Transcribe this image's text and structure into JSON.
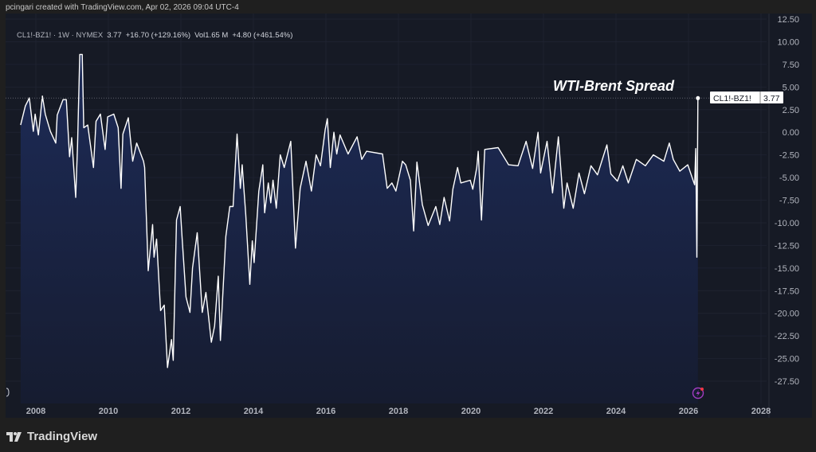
{
  "credit": "pcingari created with TradingView.com, Apr 02, 2026 09:04 UTC-4",
  "legend": {
    "symbol": "CL1!-BZ1! · 1W · NYMEX",
    "last": "3.77",
    "change": "+16.70 (+129.16%)",
    "volume": "Vol1.65 M",
    "vol_change": "+4.80 (+461.54%)"
  },
  "price_label": {
    "symbol": "CL1!-BZ1!",
    "value": "3.77"
  },
  "brand": "TradingView",
  "colors": {
    "line": "#ffffff",
    "fill_top": "#1d2b58",
    "fill_bottom": "#161c30",
    "background": "#161a25",
    "alert": "#b040c0"
  },
  "icons": [
    "tradingview-logo-icon",
    "lightning-alert-icon"
  ],
  "chart_data": {
    "type": "area",
    "title": "WTI-Brent Spread",
    "xlabel": "",
    "ylabel": "",
    "xlim": [
      2007.2,
      2028.5
    ],
    "ylim": [
      -29,
      13.5
    ],
    "grid": true,
    "x_ticks": [
      "2008",
      "2010",
      "2012",
      "2014",
      "2016",
      "2018",
      "2020",
      "2022",
      "2024",
      "2026",
      "2028"
    ],
    "y_ticks": [
      "12.50",
      "10.00",
      "7.50",
      "5.00",
      "2.50",
      "0.00",
      "-2.50",
      "-5.00",
      "-7.50",
      "-10.00",
      "-12.50",
      "-15.00",
      "-17.50",
      "-20.00",
      "-22.50",
      "-25.00",
      "-27.50"
    ],
    "last_value": 3.77,
    "series": [
      {
        "x": [
          2007.58,
          2007.71,
          2007.82,
          2007.93,
          2007.98,
          2008.07,
          2008.18,
          2008.26,
          2008.4,
          2008.55,
          2008.59,
          2008.75,
          2008.84,
          2008.93,
          2008.99,
          2009.1,
          2009.15,
          2009.21,
          2009.28,
          2009.32,
          2009.43,
          2009.59,
          2009.66,
          2009.78,
          2009.91,
          2009.98,
          2010.15,
          2010.27,
          2010.35,
          2010.4,
          2010.55,
          2010.67,
          2010.78,
          2010.97,
          2011.0,
          2011.1,
          2011.22,
          2011.26,
          2011.33,
          2011.44,
          2011.54,
          2011.63,
          2011.74,
          2011.79,
          2011.88,
          2011.98,
          2012.03,
          2012.14,
          2012.25,
          2012.32,
          2012.45,
          2012.59,
          2012.69,
          2012.84,
          2012.93,
          2013.03,
          2013.09,
          2013.24,
          2013.35,
          2013.44,
          2013.55,
          2013.64,
          2013.69,
          2013.79,
          2013.9,
          2013.97,
          2014.02,
          2014.15,
          2014.26,
          2014.31,
          2014.41,
          2014.48,
          2014.54,
          2014.63,
          2014.74,
          2014.85,
          2015.03,
          2015.16,
          2015.29,
          2015.45,
          2015.6,
          2015.73,
          2015.85,
          2015.98,
          2016.04,
          2016.12,
          2016.22,
          2016.3,
          2016.39,
          2016.61,
          2016.86,
          2016.99,
          2017.12,
          2017.56,
          2017.69,
          2017.82,
          2017.93,
          2018.11,
          2018.2,
          2018.33,
          2018.42,
          2018.51,
          2018.66,
          2018.82,
          2019.03,
          2019.14,
          2019.26,
          2019.41,
          2019.5,
          2019.63,
          2019.72,
          2019.98,
          2020.05,
          2020.16,
          2020.2,
          2020.29,
          2020.38,
          2020.75,
          2021.04,
          2021.3,
          2021.52,
          2021.7,
          2021.85,
          2021.92,
          2022.1,
          2022.25,
          2022.41,
          2022.56,
          2022.65,
          2022.82,
          2022.98,
          2023.13,
          2023.31,
          2023.49,
          2023.75,
          2023.86,
          2024.04,
          2024.19,
          2024.34,
          2024.56,
          2024.81,
          2025.03,
          2025.32,
          2025.47,
          2025.58,
          2025.76,
          2025.98,
          2026.17,
          2026.2,
          2026.23,
          2026.26
        ],
        "y": [
          0.8,
          2.9,
          3.8,
          0.1,
          2.0,
          -0.3,
          4.0,
          2.0,
          0.1,
          -1.2,
          1.9,
          3.6,
          3.6,
          -2.7,
          -0.6,
          -7.2,
          -1.5,
          8.6,
          8.6,
          0.5,
          0.8,
          -3.9,
          1.2,
          2.0,
          -1.9,
          1.7,
          2.0,
          0.5,
          -6.2,
          -0.2,
          1.6,
          -3.2,
          -1.2,
          -3.2,
          -3.9,
          -15.3,
          -10.2,
          -13.8,
          -11.8,
          -19.7,
          -19.1,
          -26.0,
          -22.9,
          -25.2,
          -9.7,
          -8.2,
          -11.5,
          -18.2,
          -19.9,
          -15.0,
          -11.1,
          -19.9,
          -17.7,
          -23.2,
          -21.4,
          -15.9,
          -23.0,
          -11.5,
          -8.2,
          -8.2,
          -0.2,
          -6.2,
          -3.6,
          -9.1,
          -16.8,
          -12.0,
          -14.4,
          -6.5,
          -3.6,
          -8.9,
          -5.6,
          -7.8,
          -5.3,
          -8.4,
          -2.5,
          -3.9,
          -1.0,
          -12.8,
          -6.2,
          -3.2,
          -6.5,
          -2.5,
          -3.7,
          0.3,
          1.5,
          -3.9,
          0.0,
          -2.4,
          -0.3,
          -2.4,
          -0.5,
          -3.0,
          -2.1,
          -2.4,
          -6.2,
          -5.6,
          -6.5,
          -3.2,
          -3.6,
          -5.3,
          -10.9,
          -3.3,
          -8.0,
          -10.3,
          -8.2,
          -10.2,
          -7.2,
          -9.8,
          -6.3,
          -3.9,
          -5.6,
          -5.3,
          -6.3,
          -3.9,
          -2.1,
          -9.7,
          -1.9,
          -1.7,
          -3.6,
          -3.7,
          -1.0,
          -4.0,
          0.0,
          -4.5,
          -1.0,
          -6.7,
          -0.5,
          -8.4,
          -5.6,
          -8.4,
          -4.5,
          -6.8,
          -3.7,
          -4.7,
          -1.4,
          -4.6,
          -5.4,
          -3.7,
          -5.6,
          -3.0,
          -3.7,
          -2.5,
          -3.2,
          -1.2,
          -3.0,
          -4.3,
          -3.6,
          -5.8,
          -1.8,
          -13.8,
          3.77
        ]
      }
    ]
  }
}
